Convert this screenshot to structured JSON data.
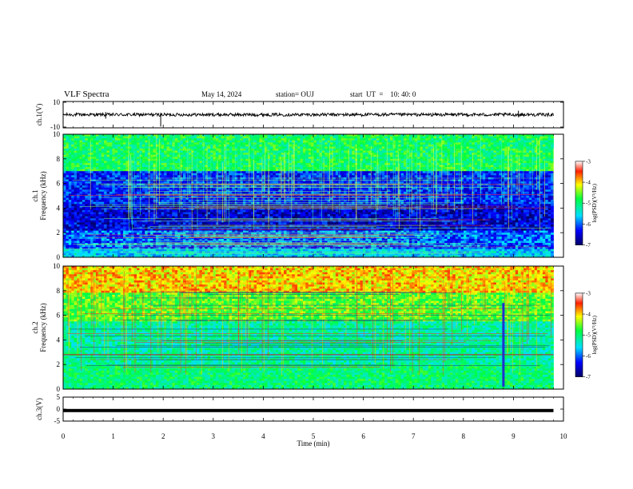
{
  "header": {
    "title": "VLF Spectra",
    "date": "May 14, 2024",
    "station": "station= OUJ",
    "start": "start  UT  =    10: 40: 0"
  },
  "colors": {
    "trace": "#000000",
    "colormap": [
      "#000066",
      "#0000ff",
      "#00e0ff",
      "#00ff40",
      "#ffff00",
      "#ff3000",
      "#ffffff"
    ]
  },
  "chart_data": [
    {
      "type": "line",
      "panel": "ch1-waveform",
      "ylabel": "ch.1(V)",
      "ylim": [
        -10,
        10
      ],
      "yticks": [
        "10",
        "-10"
      ],
      "xlim": [
        0,
        10
      ],
      "description_values": {
        "mean_level": 0,
        "amplitude": 1.2
      }
    },
    {
      "type": "heatmap",
      "panel": "ch1-spectrogram",
      "ylabel": "ch.1 Frequency (kHz)",
      "ylim": [
        0,
        10
      ],
      "yticks": [
        "0",
        "2",
        "4",
        "6",
        "8",
        "10"
      ],
      "xlim": [
        0,
        10
      ],
      "colorbar": {
        "label": "log(PSD)(V²/Hz)",
        "range": [
          -7,
          -3
        ],
        "ticks": [
          "-3",
          "-4",
          "-5",
          "-6",
          "-7"
        ]
      }
    },
    {
      "type": "heatmap",
      "panel": "ch2-spectrogram",
      "ylabel": "ch.2 Frequency (kHz)",
      "ylim": [
        0,
        10
      ],
      "yticks": [
        "0",
        "2",
        "4",
        "6",
        "8",
        "10"
      ],
      "xlim": [
        0,
        10
      ],
      "colorbar": {
        "label": "log(PSD)(V²/Hz)",
        "range": [
          -7,
          -3
        ],
        "ticks": [
          "-3",
          "-4",
          "-5",
          "-6",
          "-7"
        ]
      }
    },
    {
      "type": "line",
      "panel": "ch3-waveform",
      "ylabel": "ch.3(V)",
      "ylim": [
        -5,
        5
      ],
      "yticks": [
        "5",
        "0",
        "-5"
      ],
      "xlim": [
        0,
        10
      ],
      "description_values": {
        "mean_level": -0.6,
        "amplitude": 0.1
      }
    }
  ],
  "xaxis": {
    "label": "Time  (min)",
    "ticks": [
      "0",
      "1",
      "2",
      "3",
      "4",
      "5",
      "6",
      "7",
      "8",
      "9",
      "10"
    ],
    "data_end": 9.8
  }
}
